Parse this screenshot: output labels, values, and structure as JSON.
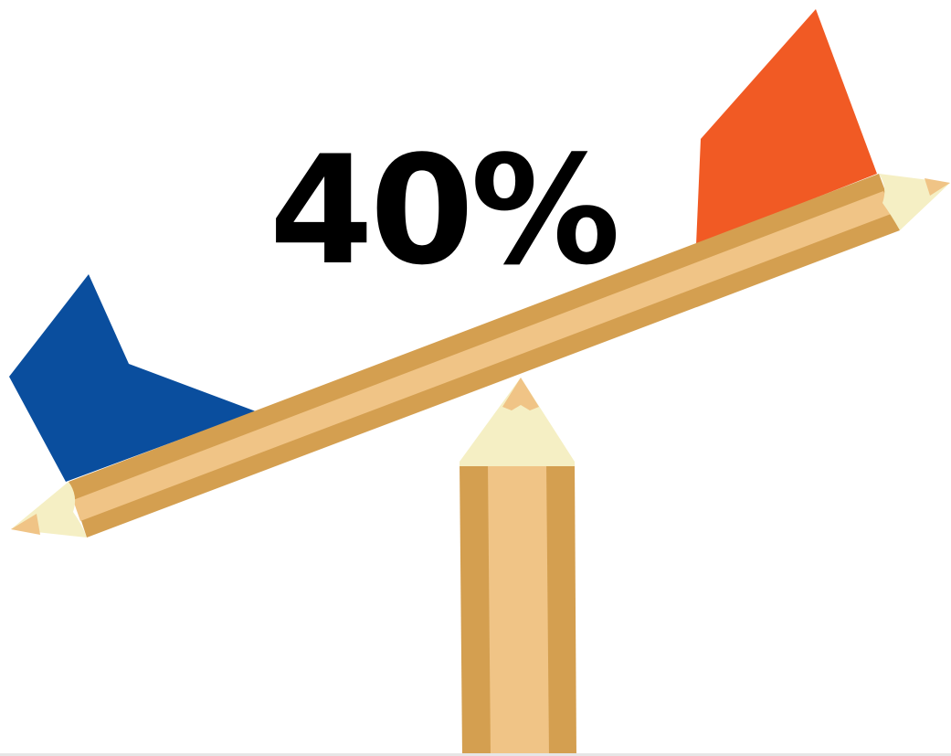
{
  "illustration": {
    "percentage_label": "40%",
    "colors": {
      "background": "#ffffff",
      "left_block": "#0a4e9e",
      "right_block": "#f15a24",
      "pencil_wood": "#f0c486",
      "pencil_shade": "#d49f50",
      "pencil_shaving": "#f5efc4",
      "pencil_tip": "#f0c486",
      "text": "#000000",
      "bottom_rule": "#e6e6e6"
    },
    "icons": {
      "left_block": "blue-block-icon",
      "right_block": "orange-block-icon",
      "beam": "pencil-beam-icon",
      "fulcrum": "pencil-fulcrum-icon"
    }
  }
}
